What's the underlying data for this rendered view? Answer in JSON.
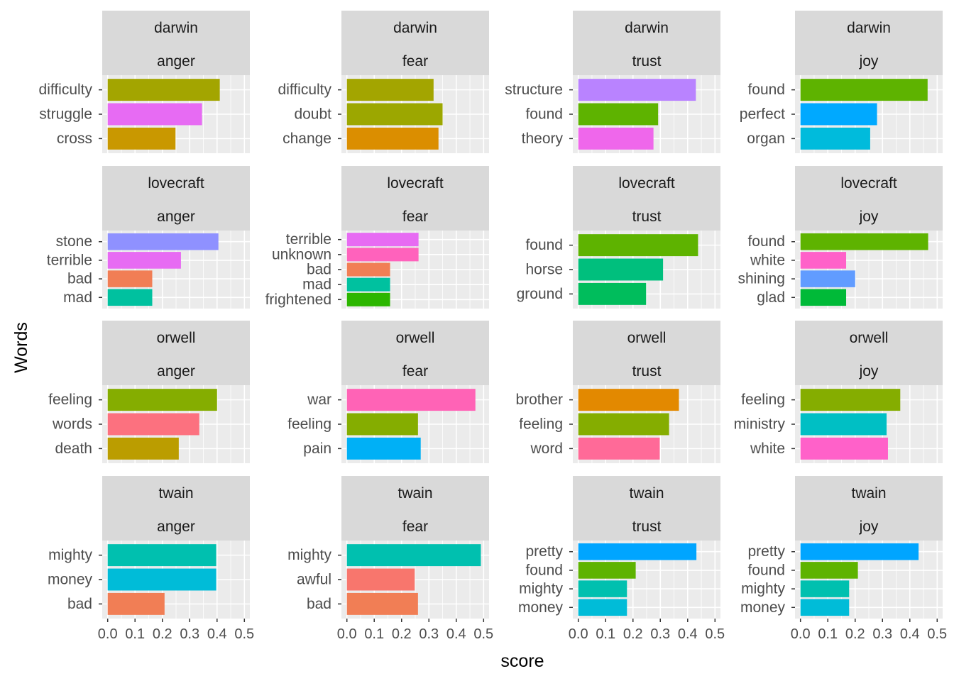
{
  "chart_data": {
    "type": "bar",
    "orientation": "horizontal",
    "xlabel": "score",
    "ylabel": "Words",
    "xlim": [
      -0.02,
      0.52
    ],
    "xticks": [
      "0.0",
      "0.1",
      "0.2",
      "0.3",
      "0.4",
      "0.5"
    ],
    "grid": true,
    "legend": "none",
    "panels": [
      {
        "author": "darwin",
        "sentiment": "anger",
        "bars": [
          {
            "word": "difficulty",
            "score": 0.41,
            "color": "#A3A500"
          },
          {
            "word": "struggle",
            "score": 0.345,
            "color": "#E76BF3"
          },
          {
            "word": "cross",
            "score": 0.248,
            "color": "#C99800"
          }
        ]
      },
      {
        "author": "darwin",
        "sentiment": "fear",
        "bars": [
          {
            "word": "difficulty",
            "score": 0.317,
            "color": "#A3A500"
          },
          {
            "word": "doubt",
            "score": 0.35,
            "color": "#9CA700"
          },
          {
            "word": "change",
            "score": 0.335,
            "color": "#DB8E00"
          }
        ]
      },
      {
        "author": "darwin",
        "sentiment": "trust",
        "bars": [
          {
            "word": "structure",
            "score": 0.43,
            "color": "#B983FF"
          },
          {
            "word": "found",
            "score": 0.292,
            "color": "#5EB300"
          },
          {
            "word": "theory",
            "score": 0.275,
            "color": "#EF67EB"
          }
        ]
      },
      {
        "author": "darwin",
        "sentiment": "joy",
        "bars": [
          {
            "word": "found",
            "score": 0.465,
            "color": "#5EB300"
          },
          {
            "word": "perfect",
            "score": 0.28,
            "color": "#00A9FF"
          },
          {
            "word": "organ",
            "score": 0.255,
            "color": "#00BBDC"
          }
        ]
      },
      {
        "author": "lovecraft",
        "sentiment": "anger",
        "bars": [
          {
            "word": "stone",
            "score": 0.405,
            "color": "#8F91FF"
          },
          {
            "word": "terrible",
            "score": 0.268,
            "color": "#E76BF3"
          },
          {
            "word": "bad",
            "score": 0.163,
            "color": "#F17E55"
          },
          {
            "word": "mad",
            "score": 0.163,
            "color": "#00C19F"
          }
        ]
      },
      {
        "author": "lovecraft",
        "sentiment": "fear",
        "bars": [
          {
            "word": "terrible",
            "score": 0.262,
            "color": "#E76BF3"
          },
          {
            "word": "unknown",
            "score": 0.262,
            "color": "#FF62BC"
          },
          {
            "word": "bad",
            "score": 0.158,
            "color": "#F17E55"
          },
          {
            "word": "mad",
            "score": 0.158,
            "color": "#00C19F"
          },
          {
            "word": "frightened",
            "score": 0.158,
            "color": "#2CB600"
          }
        ]
      },
      {
        "author": "lovecraft",
        "sentiment": "trust",
        "bars": [
          {
            "word": "found",
            "score": 0.438,
            "color": "#5EB300"
          },
          {
            "word": "horse",
            "score": 0.31,
            "color": "#00BF7D"
          },
          {
            "word": "ground",
            "score": 0.248,
            "color": "#00BD5C"
          }
        ]
      },
      {
        "author": "lovecraft",
        "sentiment": "joy",
        "bars": [
          {
            "word": "found",
            "score": 0.467,
            "color": "#5EB300"
          },
          {
            "word": "white",
            "score": 0.167,
            "color": "#FF61C9"
          },
          {
            "word": "shining",
            "score": 0.2,
            "color": "#619CFF"
          },
          {
            "word": "glad",
            "score": 0.167,
            "color": "#00BA38"
          }
        ]
      },
      {
        "author": "orwell",
        "sentiment": "anger",
        "bars": [
          {
            "word": "feeling",
            "score": 0.4,
            "color": "#85AD00"
          },
          {
            "word": "words",
            "score": 0.335,
            "color": "#FC717F"
          },
          {
            "word": "death",
            "score": 0.26,
            "color": "#BB9D00"
          }
        ]
      },
      {
        "author": "orwell",
        "sentiment": "fear",
        "bars": [
          {
            "word": "war",
            "score": 0.47,
            "color": "#FF63B6"
          },
          {
            "word": "feeling",
            "score": 0.26,
            "color": "#85AD00"
          },
          {
            "word": "pain",
            "score": 0.27,
            "color": "#00B0F6"
          }
        ]
      },
      {
        "author": "orwell",
        "sentiment": "trust",
        "bars": [
          {
            "word": "brother",
            "score": 0.368,
            "color": "#E38900"
          },
          {
            "word": "feeling",
            "score": 0.332,
            "color": "#85AD00"
          },
          {
            "word": "word",
            "score": 0.298,
            "color": "#FF6A98"
          }
        ]
      },
      {
        "author": "orwell",
        "sentiment": "joy",
        "bars": [
          {
            "word": "feeling",
            "score": 0.365,
            "color": "#85AD00"
          },
          {
            "word": "ministry",
            "score": 0.315,
            "color": "#00BFC4"
          },
          {
            "word": "white",
            "score": 0.32,
            "color": "#FF61C9"
          }
        ]
      },
      {
        "author": "twain",
        "sentiment": "anger",
        "bars": [
          {
            "word": "mighty",
            "score": 0.397,
            "color": "#00C0AF"
          },
          {
            "word": "money",
            "score": 0.397,
            "color": "#00BCD8"
          },
          {
            "word": "bad",
            "score": 0.208,
            "color": "#F17E55"
          }
        ]
      },
      {
        "author": "twain",
        "sentiment": "fear",
        "bars": [
          {
            "word": "mighty",
            "score": 0.49,
            "color": "#00C0AF"
          },
          {
            "word": "awful",
            "score": 0.248,
            "color": "#F8766D"
          },
          {
            "word": "bad",
            "score": 0.26,
            "color": "#F17E55"
          }
        ]
      },
      {
        "author": "twain",
        "sentiment": "trust",
        "bars": [
          {
            "word": "pretty",
            "score": 0.432,
            "color": "#00A5FF"
          },
          {
            "word": "found",
            "score": 0.21,
            "color": "#5EB300"
          },
          {
            "word": "mighty",
            "score": 0.178,
            "color": "#00C0AF"
          },
          {
            "word": "money",
            "score": 0.178,
            "color": "#00BCD8"
          }
        ]
      },
      {
        "author": "twain",
        "sentiment": "joy",
        "bars": [
          {
            "word": "pretty",
            "score": 0.432,
            "color": "#00A5FF"
          },
          {
            "word": "found",
            "score": 0.21,
            "color": "#5EB300"
          },
          {
            "word": "mighty",
            "score": 0.178,
            "color": "#00C0AF"
          },
          {
            "word": "money",
            "score": 0.178,
            "color": "#00BCD8"
          }
        ]
      }
    ]
  }
}
